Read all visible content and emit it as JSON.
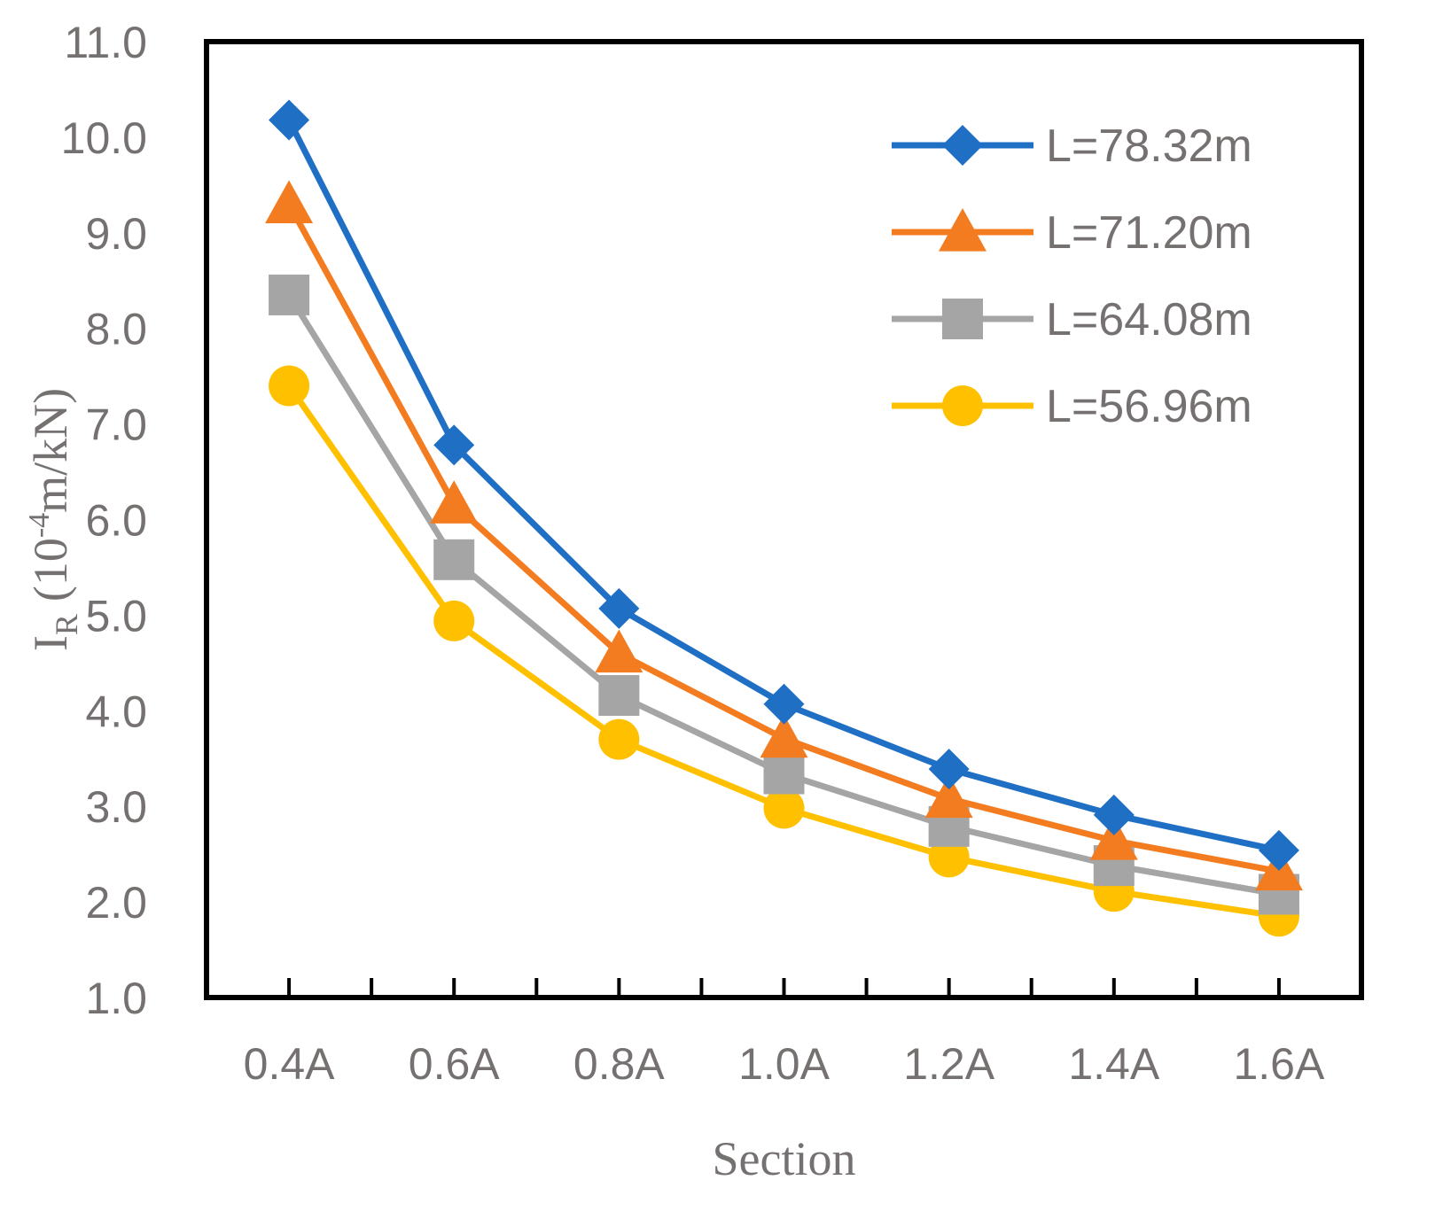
{
  "chart_data": {
    "type": "line",
    "title": "",
    "xlabel": "Section",
    "ylabel": {
      "symbol": "I",
      "subscript": "R",
      "unit_prefix": "(10",
      "unit_exp": "-4",
      "unit_suffix": "m/kN)"
    },
    "categories": [
      "0.4A",
      "0.6A",
      "0.8A",
      "1.0A",
      "1.2A",
      "1.4A",
      "1.6A"
    ],
    "ylim": [
      1.0,
      11.0
    ],
    "yticks": [
      "1.0",
      "2.0",
      "3.0",
      "4.0",
      "5.0",
      "6.0",
      "7.0",
      "8.0",
      "9.0",
      "10.0",
      "11.0"
    ],
    "grid": false,
    "legend_position": "top-right",
    "series": [
      {
        "name": "L=78.32m",
        "marker": "diamond",
        "color": "#1F6FC5",
        "values": [
          10.18,
          6.78,
          5.07,
          4.07,
          3.39,
          2.91,
          2.54
        ]
      },
      {
        "name": "L=71.20m",
        "marker": "triangle",
        "color": "#F47C20",
        "values": [
          9.3,
          6.16,
          4.6,
          3.71,
          3.08,
          2.64,
          2.32
        ]
      },
      {
        "name": "L=64.08m",
        "marker": "square",
        "color": "#A5A5A5",
        "values": [
          8.35,
          5.58,
          4.16,
          3.34,
          2.79,
          2.38,
          2.08
        ]
      },
      {
        "name": "L=56.96m",
        "marker": "circle",
        "color": "#FFC000",
        "values": [
          7.4,
          4.94,
          3.7,
          2.98,
          2.47,
          2.11,
          1.85
        ]
      }
    ]
  }
}
